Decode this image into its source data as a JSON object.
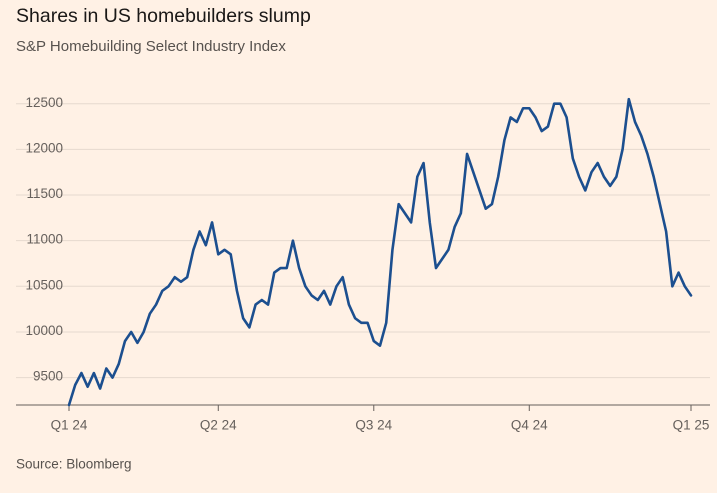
{
  "chart_data": {
    "type": "line",
    "title": "Shares in US homebuilders slump",
    "subtitle": "S&P Homebuilding Select Industry Index",
    "source": "Source: Bloomberg",
    "categories": [
      "Q1 24",
      null,
      null,
      null,
      null,
      null,
      null,
      null,
      null,
      null,
      null,
      null,
      null,
      null,
      null,
      null,
      null,
      null,
      null,
      null,
      null,
      null,
      null,
      null,
      "Q2 24",
      null,
      null,
      null,
      null,
      null,
      null,
      null,
      null,
      null,
      null,
      null,
      null,
      null,
      null,
      null,
      null,
      null,
      null,
      null,
      null,
      null,
      null,
      null,
      null,
      "Q3 24",
      null,
      null,
      null,
      null,
      null,
      null,
      null,
      null,
      null,
      null,
      null,
      null,
      null,
      null,
      null,
      null,
      null,
      null,
      null,
      null,
      null,
      null,
      null,
      null,
      "Q4 24",
      null,
      null,
      null,
      null,
      null,
      null,
      null,
      null,
      null,
      null,
      null,
      null,
      null,
      null,
      null,
      null,
      null,
      null,
      null,
      null,
      null,
      null,
      null,
      null,
      null,
      "Q1 25"
    ],
    "series": [
      {
        "name": "S&P Homebuilding Select Industry Index",
        "color": "#1c4f8f",
        "values": [
          9200,
          9420,
          9550,
          9400,
          9550,
          9380,
          9600,
          9500,
          9650,
          9900,
          10000,
          9880,
          10000,
          10200,
          10300,
          10450,
          10500,
          10600,
          10550,
          10600,
          10900,
          11100,
          10950,
          11200,
          10850,
          10900,
          10850,
          10450,
          10150,
          10050,
          10300,
          10350,
          10300,
          10650,
          10700,
          10700,
          11000,
          10700,
          10500,
          10400,
          10350,
          10450,
          10300,
          10500,
          10600,
          10300,
          10150,
          10100,
          10100,
          9900,
          9850,
          10100,
          10900,
          11400,
          11300,
          11200,
          11700,
          11850,
          11200,
          10700,
          10800,
          10900,
          11150,
          11300,
          11950,
          11750,
          11550,
          11350,
          11400,
          11700,
          12100,
          12350,
          12300,
          12450,
          12450,
          12350,
          12200,
          12250,
          12500,
          12500,
          12350,
          11900,
          11700,
          11550,
          11750,
          11850,
          11700,
          11600,
          11700,
          12000,
          12550,
          12300,
          12150,
          11950,
          11700,
          11400,
          11100,
          10500,
          10650,
          10500,
          10400
        ]
      }
    ],
    "ylim": [
      9200,
      12650
    ],
    "yticks": [
      9500,
      10000,
      10500,
      11000,
      11500,
      12000,
      12500
    ],
    "grid": true
  }
}
